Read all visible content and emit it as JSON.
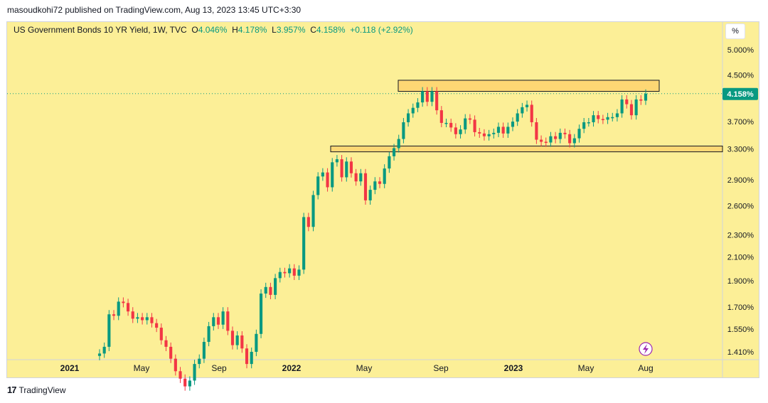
{
  "header": {
    "published": "masoudkohi72 published on TradingView.com, Aug 13, 2023 13:45 UTC+3:30"
  },
  "legend": {
    "symbol": "US Government Bonds 10 YR Yield, 1W, TVC",
    "o_label": "O",
    "o_value": "4.046%",
    "h_label": "H",
    "h_value": "4.178%",
    "l_label": "L",
    "l_value": "3.957%",
    "c_label": "C",
    "c_value": "4.158%",
    "change": "+0.118 (+2.92%)"
  },
  "scale_button": "%",
  "footer": {
    "brand": "TradingView",
    "logo": "17"
  },
  "colors": {
    "up": "#089981",
    "down": "#f23645",
    "background": "#fcef97",
    "zone": "#fdd774"
  },
  "chart_data": {
    "type": "candlestick",
    "title": "US Government Bonds 10 YR Yield, 1W, TVC",
    "y_axis": {
      "scale": "log",
      "unit": "%",
      "ticks": [
        "5.000%",
        "4.500%",
        "3.700%",
        "3.300%",
        "2.900%",
        "2.600%",
        "2.300%",
        "2.100%",
        "1.900%",
        "1.700%",
        "1.550%",
        "1.410%"
      ]
    },
    "x_axis": {
      "ticks": [
        "2021",
        "May",
        "Sep",
        "2022",
        "May",
        "Sep",
        "2023",
        "May",
        "Aug"
      ]
    },
    "last_price_label": "4.158%",
    "zones": [
      {
        "low": 4.2,
        "high": 4.4
      },
      {
        "low": 3.26,
        "high": 3.34
      }
    ],
    "series_close": [
      1.4,
      1.44,
      1.65,
      1.64,
      1.74,
      1.73,
      1.67,
      1.62,
      1.63,
      1.61,
      1.63,
      1.59,
      1.56,
      1.48,
      1.44,
      1.37,
      1.3,
      1.26,
      1.22,
      1.25,
      1.34,
      1.37,
      1.47,
      1.57,
      1.63,
      1.58,
      1.67,
      1.54,
      1.45,
      1.51,
      1.43,
      1.34,
      1.41,
      1.52,
      1.8,
      1.85,
      1.79,
      1.92,
      1.97,
      1.96,
      2.0,
      1.94,
      1.99,
      2.48,
      2.38,
      2.72,
      2.94,
      2.99,
      2.81,
      3.12,
      3.16,
      2.93,
      3.13,
      2.98,
      2.88,
      2.98,
      2.66,
      2.78,
      2.88,
      2.85,
      3.04,
      3.2,
      3.31,
      3.44,
      3.69,
      3.83,
      3.92,
      4.01,
      4.2,
      4.02,
      4.2,
      3.88,
      3.68,
      3.68,
      3.61,
      3.51,
      3.58,
      3.75,
      3.73,
      3.54,
      3.52,
      3.48,
      3.51,
      3.53,
      3.62,
      3.52,
      3.62,
      3.7,
      3.83,
      3.93,
      3.97,
      3.69,
      3.43,
      3.4,
      3.39,
      3.48,
      3.44,
      3.53,
      3.51,
      3.38,
      3.45,
      3.59,
      3.69,
      3.69,
      3.8,
      3.74,
      3.73,
      3.77,
      3.77,
      3.83,
      4.06,
      3.98,
      3.8,
      4.06,
      4.04,
      4.16
    ]
  }
}
